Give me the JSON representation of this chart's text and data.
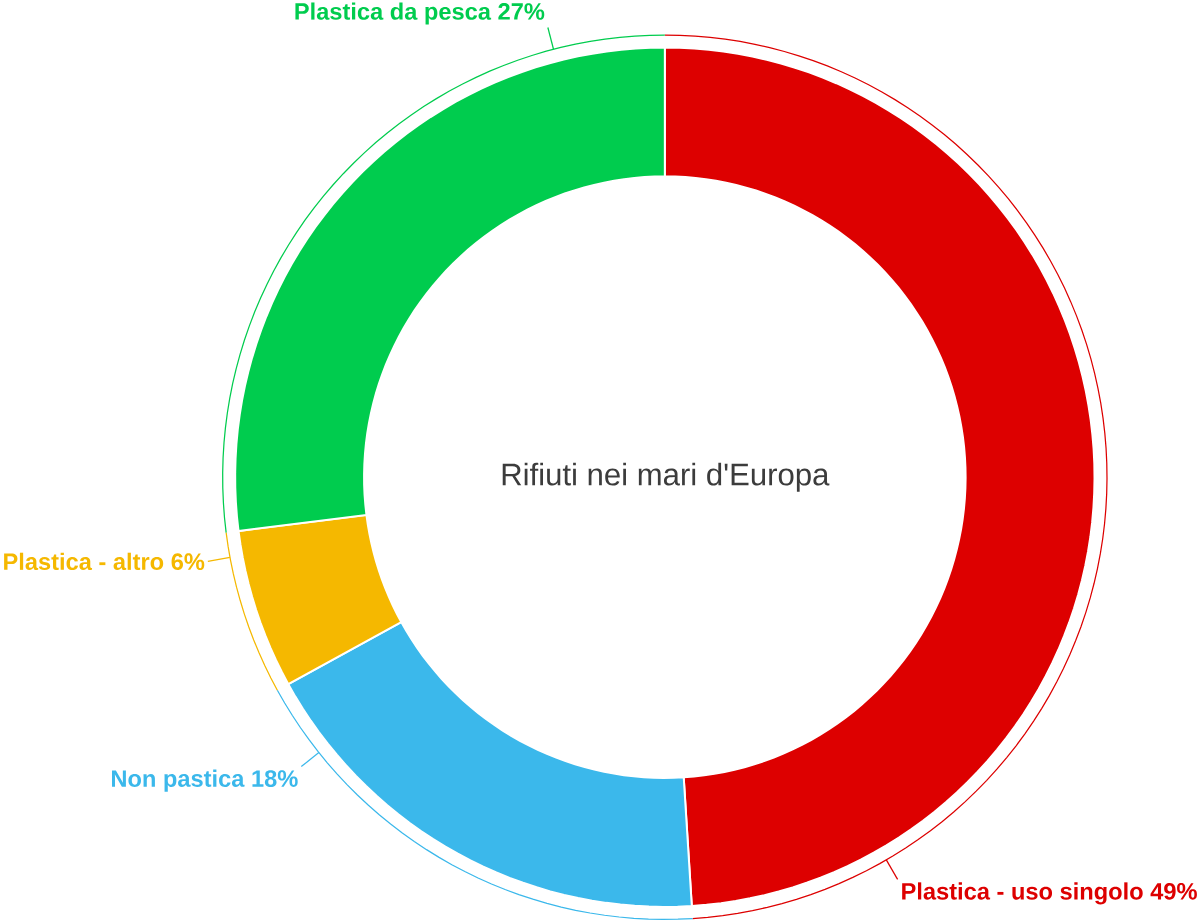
{
  "chart_data": {
    "type": "donut",
    "title": "Rifiuti nei mari d'Europa",
    "categories": [
      "Plastica - uso singolo",
      "Non pastica",
      "Plastica - altro",
      "Plastica da pesca"
    ],
    "values": [
      49,
      18,
      6,
      27
    ],
    "value_labels": [
      "49%",
      "18%",
      "6%",
      "27%"
    ],
    "colors": [
      "#dd0000",
      "#3bb8eb",
      "#f5b800",
      "#00cc4e"
    ]
  }
}
